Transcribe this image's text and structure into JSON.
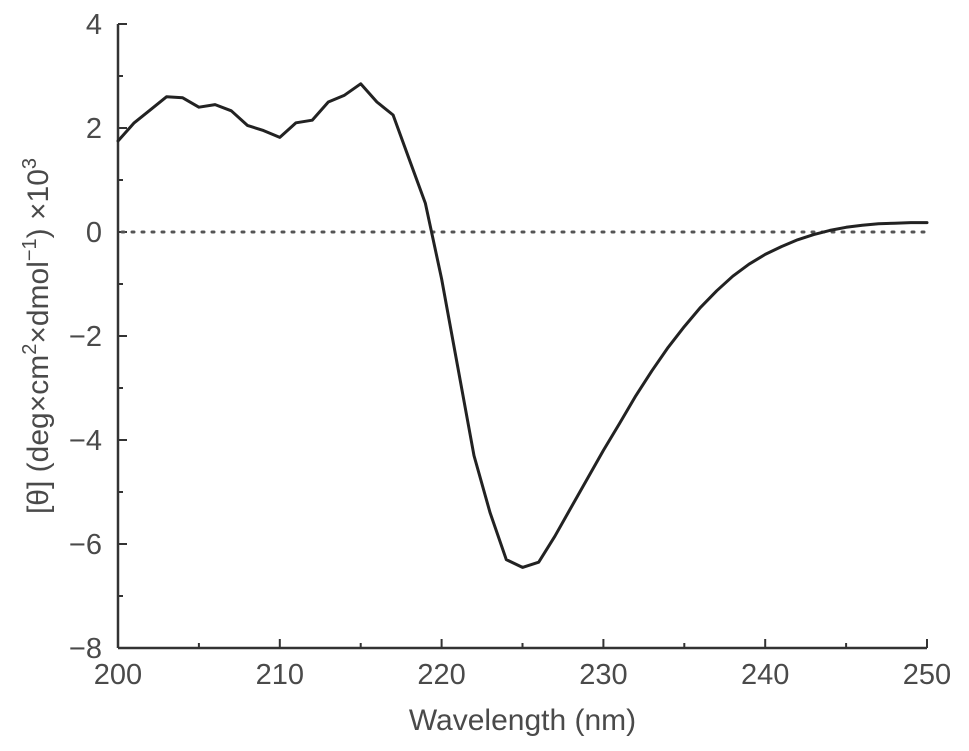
{
  "chart_data": {
    "type": "line",
    "xlabel": "Wavelength (nm)",
    "ylabel": {
      "main": "[θ] (deg×cm",
      "sup1": "2",
      "mid": "×dmol",
      "sup2": "−1",
      "end": ") ×10",
      "sup3": "3"
    },
    "xlim": [
      200,
      250
    ],
    "ylim": [
      -8,
      4
    ],
    "x_ticks": [
      200,
      210,
      220,
      230,
      240,
      250
    ],
    "x_tick_labels": [
      "200",
      "210",
      "220",
      "230",
      "240",
      "250"
    ],
    "y_ticks": [
      4,
      2,
      0,
      -2,
      -4,
      -6,
      -8
    ],
    "y_tick_labels": [
      "4",
      "2",
      "0",
      "−2",
      "−4",
      "−6",
      "−8"
    ],
    "x_minor_ticks": [
      205,
      215,
      225,
      235,
      245
    ],
    "y_minor_ticks": [
      3,
      1,
      -1,
      -3,
      -5,
      -7
    ],
    "reference_line": {
      "y": 0,
      "style": "dotted"
    },
    "grid": false,
    "series": [
      {
        "x": [
          200,
          201,
          202,
          203,
          204,
          205,
          206,
          207,
          208,
          209,
          210,
          211,
          212,
          213,
          214,
          215,
          216,
          217,
          218,
          219,
          220,
          221,
          222,
          223,
          224,
          225,
          226,
          227,
          228,
          229,
          230,
          231,
          232,
          233,
          234,
          235,
          236,
          237,
          238,
          239,
          240,
          241,
          242,
          243,
          244,
          245,
          246,
          247,
          248,
          249,
          250
        ],
        "y": [
          1.75,
          2.1,
          2.35,
          2.6,
          2.58,
          2.4,
          2.45,
          2.33,
          2.05,
          1.95,
          1.82,
          2.1,
          2.15,
          2.5,
          2.63,
          2.85,
          2.5,
          2.25,
          1.4,
          0.55,
          -0.9,
          -2.6,
          -4.3,
          -5.4,
          -6.3,
          -6.45,
          -6.35,
          -5.85,
          -5.3,
          -4.75,
          -4.2,
          -3.68,
          -3.15,
          -2.67,
          -2.22,
          -1.82,
          -1.45,
          -1.13,
          -0.85,
          -0.62,
          -0.43,
          -0.28,
          -0.15,
          -0.05,
          0.03,
          0.09,
          0.13,
          0.16,
          0.17,
          0.18,
          0.18
        ]
      }
    ]
  }
}
